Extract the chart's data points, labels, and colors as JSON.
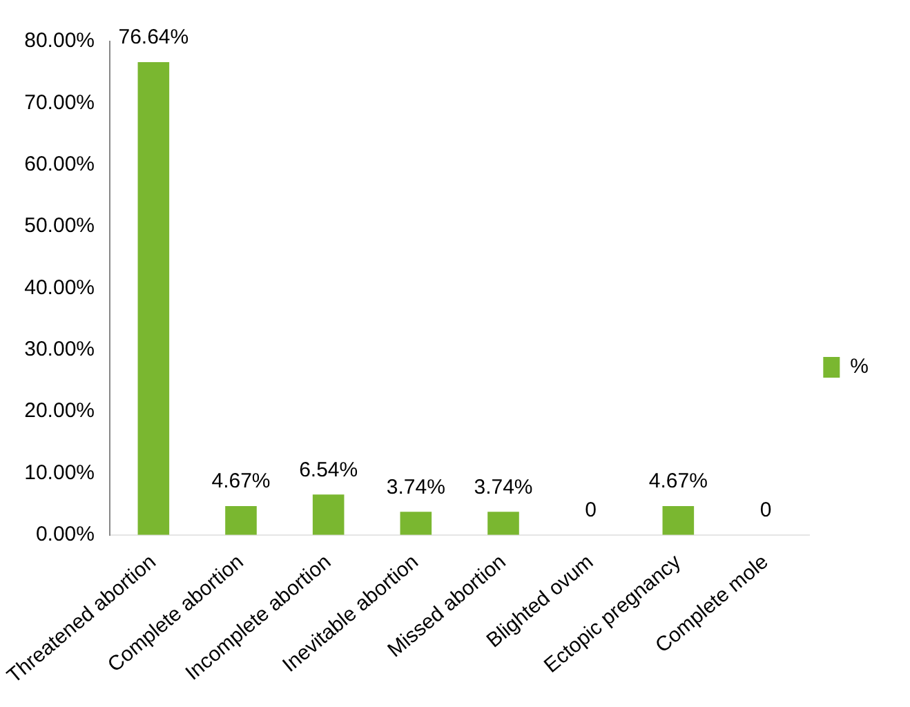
{
  "chart_data": {
    "type": "bar",
    "categories": [
      "Threatened abortion",
      "Complete abortion",
      "Incomplete abortion",
      "Inevitable abortion",
      "Missed abortion",
      "Blighted ovum",
      "Ectopic pregnancy",
      "Complete mole"
    ],
    "series": [
      {
        "name": "%",
        "color": "#7ab730",
        "values": [
          76.64,
          4.67,
          6.54,
          3.74,
          3.74,
          0,
          4.67,
          0
        ],
        "value_labels": [
          "76.64%",
          "4.67%",
          "6.54%",
          "3.74%",
          "3.74%",
          "0",
          "4.67%",
          "0"
        ]
      }
    ],
    "ylim": [
      0,
      80
    ],
    "yticks": [
      {
        "value": 0,
        "label": "0.00%"
      },
      {
        "value": 10,
        "label": "10.00%"
      },
      {
        "value": 20,
        "label": "20.00%"
      },
      {
        "value": 30,
        "label": "30.00%"
      },
      {
        "value": 40,
        "label": "40.00%"
      },
      {
        "value": 50,
        "label": "50.00%"
      },
      {
        "value": 60,
        "label": "60.00%"
      },
      {
        "value": 70,
        "label": "70.00%"
      },
      {
        "value": 80,
        "label": "80.00%"
      }
    ],
    "legend": "right",
    "grid": false
  }
}
